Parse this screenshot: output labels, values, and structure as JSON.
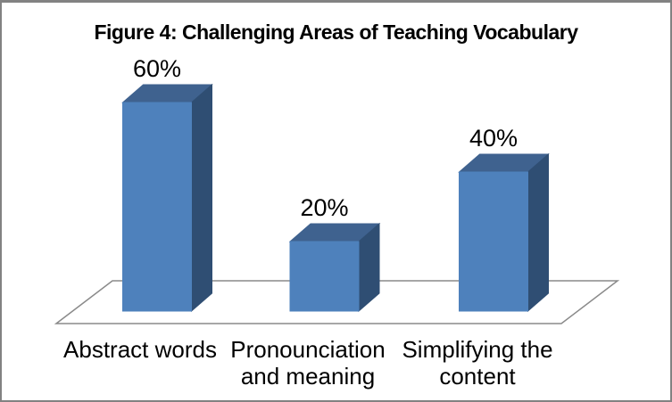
{
  "chart_data": {
    "type": "bar",
    "subtype": "3d-clustered-column",
    "title": "Figure 4: Challenging Areas of Teaching Vocabulary",
    "categories": [
      "Abstract words",
      "Pronounciation and meaning",
      "Simplifying the content"
    ],
    "values": [
      60,
      20,
      40
    ],
    "value_labels": [
      "60%",
      "20%",
      "40%"
    ],
    "unit": "percent",
    "ylim": [
      0,
      60
    ],
    "legend": "none",
    "grid": "off",
    "axes_visible": false,
    "colors": {
      "bar_front": "#4E81BC",
      "bar_top": "#3F628F",
      "bar_side": "#2F4E73",
      "floor_fill": "#FFFFFF",
      "floor_stroke": "#8A8A8A",
      "text": "#000000",
      "background": "#FFFFFF"
    }
  }
}
